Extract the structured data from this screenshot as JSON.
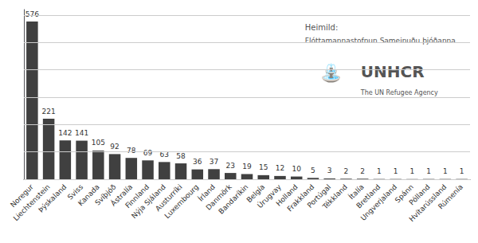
{
  "chart_data": {
    "type": "bar",
    "categories": [
      "Noregur",
      "Liechtenstein",
      "Þýskaland",
      "Sviss",
      "Kanada",
      "Svíþjóð",
      "Ástralía",
      "Finnland",
      "Nýja Sjáland",
      "Austurríki",
      "Luxembourg",
      "Írland",
      "Danmörk",
      "Bandaríkin",
      "Belgía",
      "Úrugvay",
      "Holland",
      "Frakkland",
      "Portúgal",
      "Tékkland",
      "Ítalía",
      "Bretland",
      "Ungverjaland",
      "Spánn",
      "Pólland",
      "Hvítarússland",
      "Rúmenía"
    ],
    "values": [
      576,
      221,
      142,
      141,
      105,
      92,
      78,
      69,
      63,
      58,
      36,
      37,
      23,
      19,
      15,
      12,
      10,
      5,
      3,
      2,
      2,
      1,
      1,
      1,
      1,
      1,
      1
    ],
    "color": "#404040",
    "ylim": [
      0,
      620
    ],
    "yticks": [
      0,
      100,
      200,
      300,
      400,
      500,
      600
    ],
    "grid": true,
    "tick_labels": "x",
    "data_labels": true,
    "annotations": [
      "Heimild:",
      "Flóttamannastofnun Sameinuðu þjóðanna",
      "UNHCR",
      "The UN Refugee Agency",
      "⛲"
    ]
  }
}
